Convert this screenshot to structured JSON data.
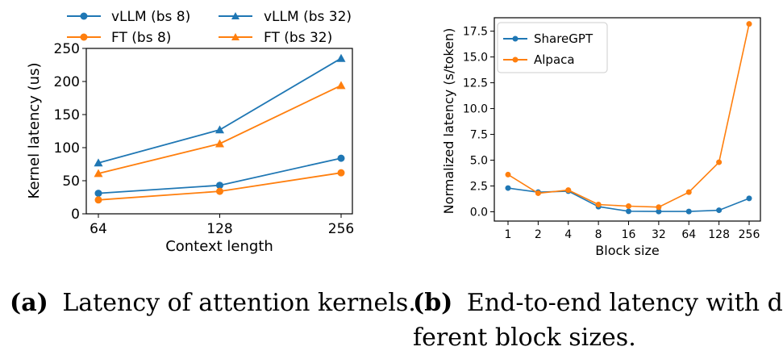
{
  "chart_data": [
    {
      "type": "line",
      "xlabel": "Context length",
      "ylabel": "Kernel latency (us)",
      "categories": [
        "64",
        "128",
        "256"
      ],
      "ylim": [
        0,
        250
      ],
      "yticks": [
        "0",
        "50",
        "100",
        "150",
        "200",
        "250"
      ],
      "series": [
        {
          "name": "vLLM (bs 8)",
          "values": [
            31,
            43,
            84
          ],
          "color": "#1f77b4",
          "marker": "circle"
        },
        {
          "name": "vLLM (bs 32)",
          "values": [
            77,
            127,
            235
          ],
          "color": "#1f77b4",
          "marker": "triangle"
        },
        {
          "name": "FT (bs 8)",
          "values": [
            21,
            34,
            62
          ],
          "color": "#ff7f0e",
          "marker": "circle"
        },
        {
          "name": "FT (bs 32)",
          "values": [
            61,
            106,
            194
          ],
          "color": "#ff7f0e",
          "marker": "triangle"
        }
      ],
      "legend": "top",
      "caption_tag": "(a)",
      "caption": "Latency of attention kernels."
    },
    {
      "type": "line",
      "xlabel": "Block size",
      "ylabel": "Normalized latency (s/token)",
      "categories": [
        "1",
        "2",
        "4",
        "8",
        "16",
        "32",
        "64",
        "128",
        "256"
      ],
      "ylim": [
        -0.9,
        18.8
      ],
      "yticks": [
        "0.0",
        "2.5",
        "5.0",
        "7.5",
        "10.0",
        "12.5",
        "15.0",
        "17.5"
      ],
      "series": [
        {
          "name": "ShareGPT",
          "values": [
            2.3,
            1.9,
            2.0,
            0.5,
            0.05,
            0.03,
            0.03,
            0.15,
            1.3
          ],
          "color": "#1f77b4",
          "marker": "circle"
        },
        {
          "name": "Alpaca",
          "values": [
            3.6,
            1.8,
            2.1,
            0.7,
            0.55,
            0.45,
            1.9,
            4.8,
            18.2
          ],
          "color": "#ff7f0e",
          "marker": "circle"
        }
      ],
      "legend": "top-left",
      "caption_tag": "(b)",
      "caption_line1": "End-to-end latency with dif",
      "caption_line2": "ferent block sizes."
    }
  ]
}
